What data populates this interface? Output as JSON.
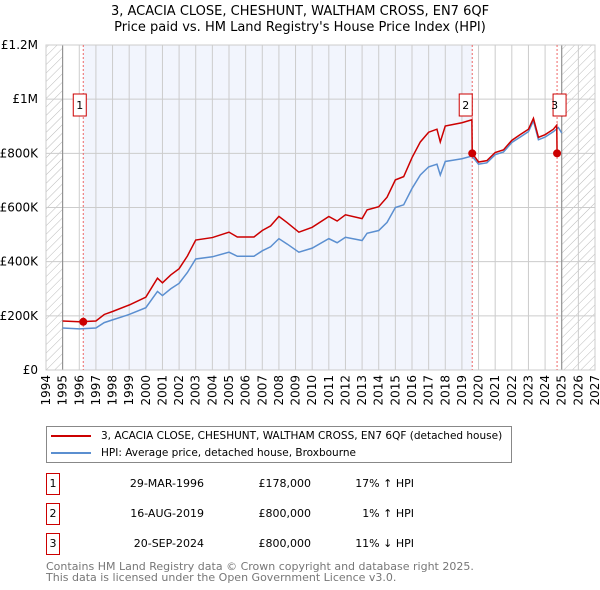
{
  "title": "3, ACACIA CLOSE, CHESHUNT, WALTHAM CROSS, EN7 6QF",
  "subtitle": "Price paid vs. HM Land Registry's House Price Index (HPI)",
  "chart_data": {
    "type": "line",
    "title": "3, ACACIA CLOSE, CHESHUNT, WALTHAM CROSS, EN7 6QF",
    "subtitle": "Price paid vs. HM Land Registry's House Price Index (HPI)",
    "xlim": [
      1994,
      2027
    ],
    "ylim": [
      0,
      1200000
    ],
    "x_ticks": [
      "1994",
      "1995",
      "1996",
      "1997",
      "1998",
      "1999",
      "2000",
      "2001",
      "2002",
      "2003",
      "2004",
      "2005",
      "2006",
      "2007",
      "2008",
      "2009",
      "2010",
      "2011",
      "2012",
      "2013",
      "2014",
      "2015",
      "2016",
      "2017",
      "2018",
      "2019",
      "2020",
      "2021",
      "2022",
      "2023",
      "2024",
      "2025",
      "2026",
      "2027"
    ],
    "y_ticks": [
      {
        "v": 0,
        "label": "£0"
      },
      {
        "v": 200000,
        "label": "£200K"
      },
      {
        "v": 400000,
        "label": "£400K"
      },
      {
        "v": 600000,
        "label": "£600K"
      },
      {
        "v": 800000,
        "label": "£800K"
      },
      {
        "v": 1000000,
        "label": "£1M"
      },
      {
        "v": 1200000,
        "label": "£1.2M"
      }
    ],
    "grid": true,
    "data_range": [
      1995,
      2025
    ],
    "series": [
      {
        "name": "3, ACACIA CLOSE, CHESHUNT, WALTHAM CROSS, EN7 6QF (detached house)",
        "color": "#cc0000",
        "points": [
          [
            1995,
            181
          ],
          [
            1996,
            178
          ],
          [
            1997,
            181
          ],
          [
            1997.5,
            205
          ],
          [
            1998,
            216
          ],
          [
            1999,
            240
          ],
          [
            2000,
            269
          ],
          [
            2000.7,
            339
          ],
          [
            2001,
            322
          ],
          [
            2001.5,
            351
          ],
          [
            2002,
            374
          ],
          [
            2002.5,
            421
          ],
          [
            2003,
            480
          ],
          [
            2004,
            489
          ],
          [
            2005,
            509
          ],
          [
            2005.5,
            491
          ],
          [
            2006.5,
            491
          ],
          [
            2007,
            515
          ],
          [
            2007.5,
            532
          ],
          [
            2008,
            567
          ],
          [
            2008.5,
            544
          ],
          [
            2009.2,
            509
          ],
          [
            2010,
            527
          ],
          [
            2011,
            567
          ],
          [
            2011.5,
            550
          ],
          [
            2012,
            573
          ],
          [
            2013,
            559
          ],
          [
            2013.3,
            591
          ],
          [
            2014,
            603
          ],
          [
            2014.5,
            638
          ],
          [
            2015,
            702
          ],
          [
            2015.5,
            714
          ],
          [
            2016,
            784
          ],
          [
            2016.5,
            842
          ],
          [
            2017,
            878
          ],
          [
            2017.5,
            889
          ],
          [
            2017.7,
            842
          ],
          [
            2018,
            901
          ],
          [
            2018.5,
            907
          ],
          [
            2019,
            913
          ],
          [
            2019.6,
            924
          ],
          [
            2019.62,
            800
          ],
          [
            2020,
            768
          ],
          [
            2020.5,
            773
          ],
          [
            2021,
            803
          ],
          [
            2021.5,
            813
          ],
          [
            2022,
            848
          ],
          [
            2022.5,
            869
          ],
          [
            2023,
            889
          ],
          [
            2023.3,
            929
          ],
          [
            2023.6,
            859
          ],
          [
            2024,
            869
          ],
          [
            2024.5,
            889
          ],
          [
            2024.7,
            904
          ],
          [
            2024.72,
            800
          ],
          [
            2024.8,
            795
          ]
        ]
      },
      {
        "name": "HPI: Average price, detached house, Broxbourne",
        "color": "#5b8fd0",
        "points": [
          [
            1995,
            155
          ],
          [
            1996,
            152
          ],
          [
            1997,
            155
          ],
          [
            1997.5,
            175
          ],
          [
            1998,
            185
          ],
          [
            1999,
            205
          ],
          [
            2000,
            230
          ],
          [
            2000.7,
            290
          ],
          [
            2001,
            275
          ],
          [
            2001.5,
            300
          ],
          [
            2002,
            320
          ],
          [
            2002.5,
            360
          ],
          [
            2003,
            410
          ],
          [
            2004,
            418
          ],
          [
            2005,
            435
          ],
          [
            2005.5,
            420
          ],
          [
            2006.5,
            420
          ],
          [
            2007,
            440
          ],
          [
            2007.5,
            455
          ],
          [
            2008,
            485
          ],
          [
            2008.5,
            465
          ],
          [
            2009.2,
            435
          ],
          [
            2010,
            450
          ],
          [
            2011,
            485
          ],
          [
            2011.5,
            470
          ],
          [
            2012,
            490
          ],
          [
            2013,
            478
          ],
          [
            2013.3,
            505
          ],
          [
            2014,
            515
          ],
          [
            2014.5,
            545
          ],
          [
            2015,
            600
          ],
          [
            2015.5,
            610
          ],
          [
            2016,
            670
          ],
          [
            2016.5,
            720
          ],
          [
            2017,
            750
          ],
          [
            2017.5,
            760
          ],
          [
            2017.7,
            720
          ],
          [
            2018,
            770
          ],
          [
            2018.5,
            775
          ],
          [
            2019,
            780
          ],
          [
            2019.6,
            790
          ],
          [
            2020,
            760
          ],
          [
            2020.5,
            765
          ],
          [
            2021,
            795
          ],
          [
            2021.5,
            805
          ],
          [
            2022,
            840
          ],
          [
            2022.5,
            860
          ],
          [
            2023,
            880
          ],
          [
            2023.3,
            920
          ],
          [
            2023.6,
            850
          ],
          [
            2024,
            860
          ],
          [
            2024.5,
            880
          ],
          [
            2024.8,
            895
          ],
          [
            2025,
            875
          ]
        ]
      }
    ],
    "value_unit": "thousand GBP",
    "sales": [
      {
        "n": "1",
        "x": 1996.24,
        "value": 178000,
        "date": "29-MAR-1996",
        "price": "£178,000",
        "hpi": "17% ↑ HPI"
      },
      {
        "n": "2",
        "x": 2019.62,
        "value": 800000,
        "date": "16-AUG-2019",
        "price": "£800,000",
        "hpi": "1% ↑ HPI"
      },
      {
        "n": "3",
        "x": 2024.72,
        "value": 800000,
        "date": "20-SEP-2024",
        "price": "£800,000",
        "hpi": "11% ↓ HPI"
      }
    ],
    "legend_position": "bottom"
  },
  "legend": {
    "red": "3, ACACIA CLOSE, CHESHUNT, WALTHAM CROSS, EN7 6QF (detached house)",
    "blue": "HPI: Average price, detached house, Broxbourne"
  },
  "footer": {
    "line1": "Contains HM Land Registry data © Crown copyright and database right 2025.",
    "line2": "This data is licensed under the Open Government Licence v3.0."
  }
}
